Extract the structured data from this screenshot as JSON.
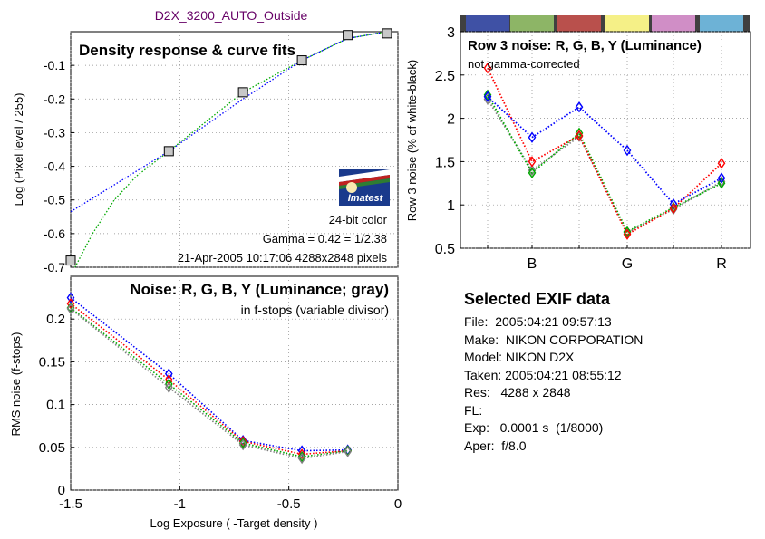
{
  "figure_title": "D2X_3200_AUTO_Outside",
  "chart_data": [
    {
      "type": "scatter",
      "title": "Density response & curve fits",
      "ylabel": "Log (Pixel level / 255)",
      "xlim": [
        -1.5,
        0
      ],
      "ylim": [
        -0.7,
        0
      ],
      "yticks": [
        "-0.1",
        "-0.2",
        "-0.3",
        "-0.4",
        "-0.5",
        "-0.6",
        "-0.7"
      ],
      "grid": true,
      "series": [
        {
          "marker": "gray-square",
          "color": "#c8c8c8",
          "x": [
            -1.5,
            -1.05,
            -0.71,
            -0.44,
            -0.23,
            -0.05
          ],
          "y": [
            -0.68,
            -0.355,
            -0.18,
            -0.085,
            -0.01,
            -0.005
          ]
        },
        {
          "line": "dotted-fit",
          "color": "#0000ff",
          "x": [
            -1.5,
            -1.05,
            -0.71,
            -0.44,
            -0.23,
            -0.05
          ],
          "y": [
            -0.535,
            -0.355,
            -0.2,
            -0.085,
            -0.02,
            0.0
          ]
        },
        {
          "line": "dotted-fit",
          "color": "#00aa00",
          "x": [
            -1.48,
            -1.4,
            -1.3,
            -1.2,
            -1.05,
            -0.71,
            -0.44,
            -0.23,
            -0.05
          ],
          "y": [
            -0.7,
            -0.6,
            -0.5,
            -0.43,
            -0.355,
            -0.18,
            -0.085,
            -0.02,
            0.0
          ]
        }
      ],
      "annotations": [
        "24-bit color",
        "Gamma = 0.42 = 1/2.38",
        "21-Apr-2005 10:17:06   4288x2848 pixels"
      ],
      "logo": "Imatest"
    },
    {
      "type": "line",
      "title": "Noise: R, G, B, Y (Luminance; gray)",
      "subtitle": "in f-stops (variable divisor)",
      "xlabel": "Log Exposure ( -Target density )",
      "ylabel": "RMS noise (f-stops)",
      "xlim": [
        -1.5,
        0
      ],
      "ylim": [
        0,
        0.25
      ],
      "xticks": [
        "-1.5",
        "-1",
        "-0.5",
        "0"
      ],
      "yticks": [
        "0",
        "0.05",
        "0.1",
        "0.15",
        "0.2"
      ],
      "grid": true,
      "x": [
        -1.5,
        -1.05,
        -0.71,
        -0.44,
        -0.23
      ],
      "series": [
        {
          "color": "#0000ff",
          "values": [
            0.225,
            0.136,
            0.058,
            0.046,
            0.047
          ]
        },
        {
          "color": "#ff0000",
          "values": [
            0.218,
            0.129,
            0.057,
            0.042,
            0.046
          ]
        },
        {
          "color": "#00aa00",
          "values": [
            0.213,
            0.124,
            0.055,
            0.039,
            0.046
          ]
        },
        {
          "color": "#808080",
          "values": [
            0.212,
            0.12,
            0.053,
            0.037,
            0.045
          ]
        }
      ]
    },
    {
      "type": "line",
      "title": "Row 3 noise: R, G, B, Y (Luminance)",
      "subtitle": "not gamma-corrected",
      "ylabel": "Row 3 noise (% of white-black)",
      "ylim": [
        0.5,
        3
      ],
      "xticks": [
        "B",
        "G",
        "R"
      ],
      "yticks": [
        "0.5",
        "1",
        "1.5",
        "2",
        "2.5",
        "3"
      ],
      "grid": true,
      "patch_colors": [
        "#3f51a5",
        "#8db566",
        "#b9504c",
        "#f5f087",
        "#d08ec6",
        "#6db2d6"
      ],
      "x": [
        1,
        2,
        3,
        4,
        5,
        6
      ],
      "series": [
        {
          "color": "#0000ff",
          "values": [
            2.25,
            1.78,
            2.13,
            1.63,
            1.01,
            1.31
          ]
        },
        {
          "color": "#ff0000",
          "values": [
            2.58,
            1.5,
            1.8,
            0.66,
            0.96,
            1.48
          ]
        },
        {
          "color": "#00aa00",
          "values": [
            2.27,
            1.37,
            1.83,
            0.69,
            0.97,
            1.25
          ]
        },
        {
          "color": "#808080",
          "values": [
            2.22,
            1.4,
            1.79,
            0.68,
            0.95,
            1.27
          ]
        }
      ]
    }
  ],
  "exif": {
    "title": "Selected EXIF data",
    "rows": [
      "File:  2005:04:21 09:57:13",
      "Make:  NIKON CORPORATION",
      "Model: NIKON D2X",
      "Taken: 2005:04:21 08:55:12",
      "Res:   4288 x 2848",
      "FL:",
      "Exp:   0.0001 s  (1/8000)",
      "Aper:  f/8.0"
    ]
  }
}
